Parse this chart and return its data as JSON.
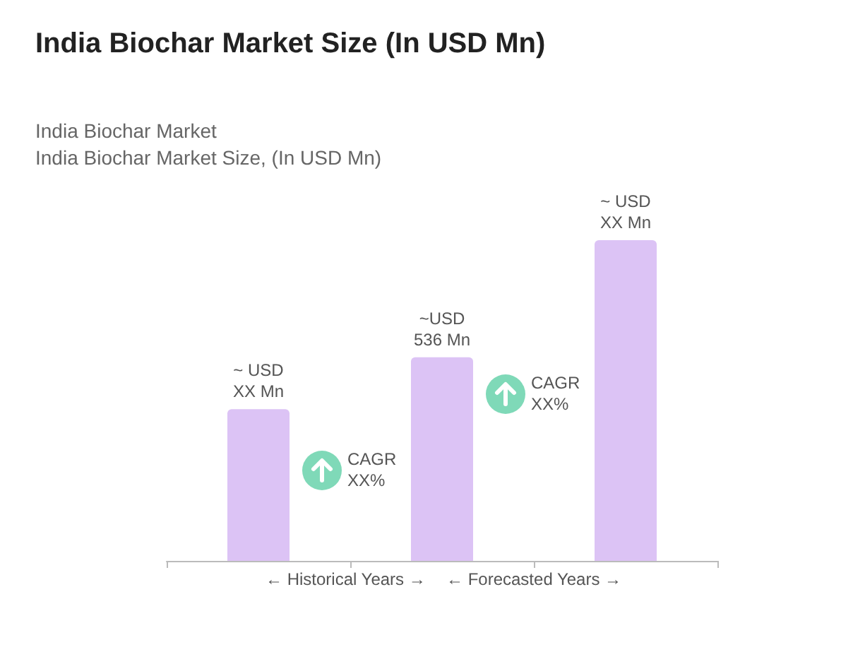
{
  "chart_data": {
    "type": "bar",
    "title": "India Biochar Market Size (In USD Mn)",
    "subtitle": "India Biochar Market\nIndia Biochar Market Size, (In USD Mn)",
    "categories": [
      null,
      null,
      null
    ],
    "values": [
      399,
      536,
      844
    ],
    "color": "#dcc3f5",
    "value_labels": [
      "~ USD\nXX Mn",
      "~USD\n536 Mn",
      "~ USD\nXX Mn"
    ],
    "annotations": [
      "← Historical Years →",
      "← Forecasted Years →",
      "CAGR\nXX%",
      "CAGR\nXX%"
    ]
  }
}
